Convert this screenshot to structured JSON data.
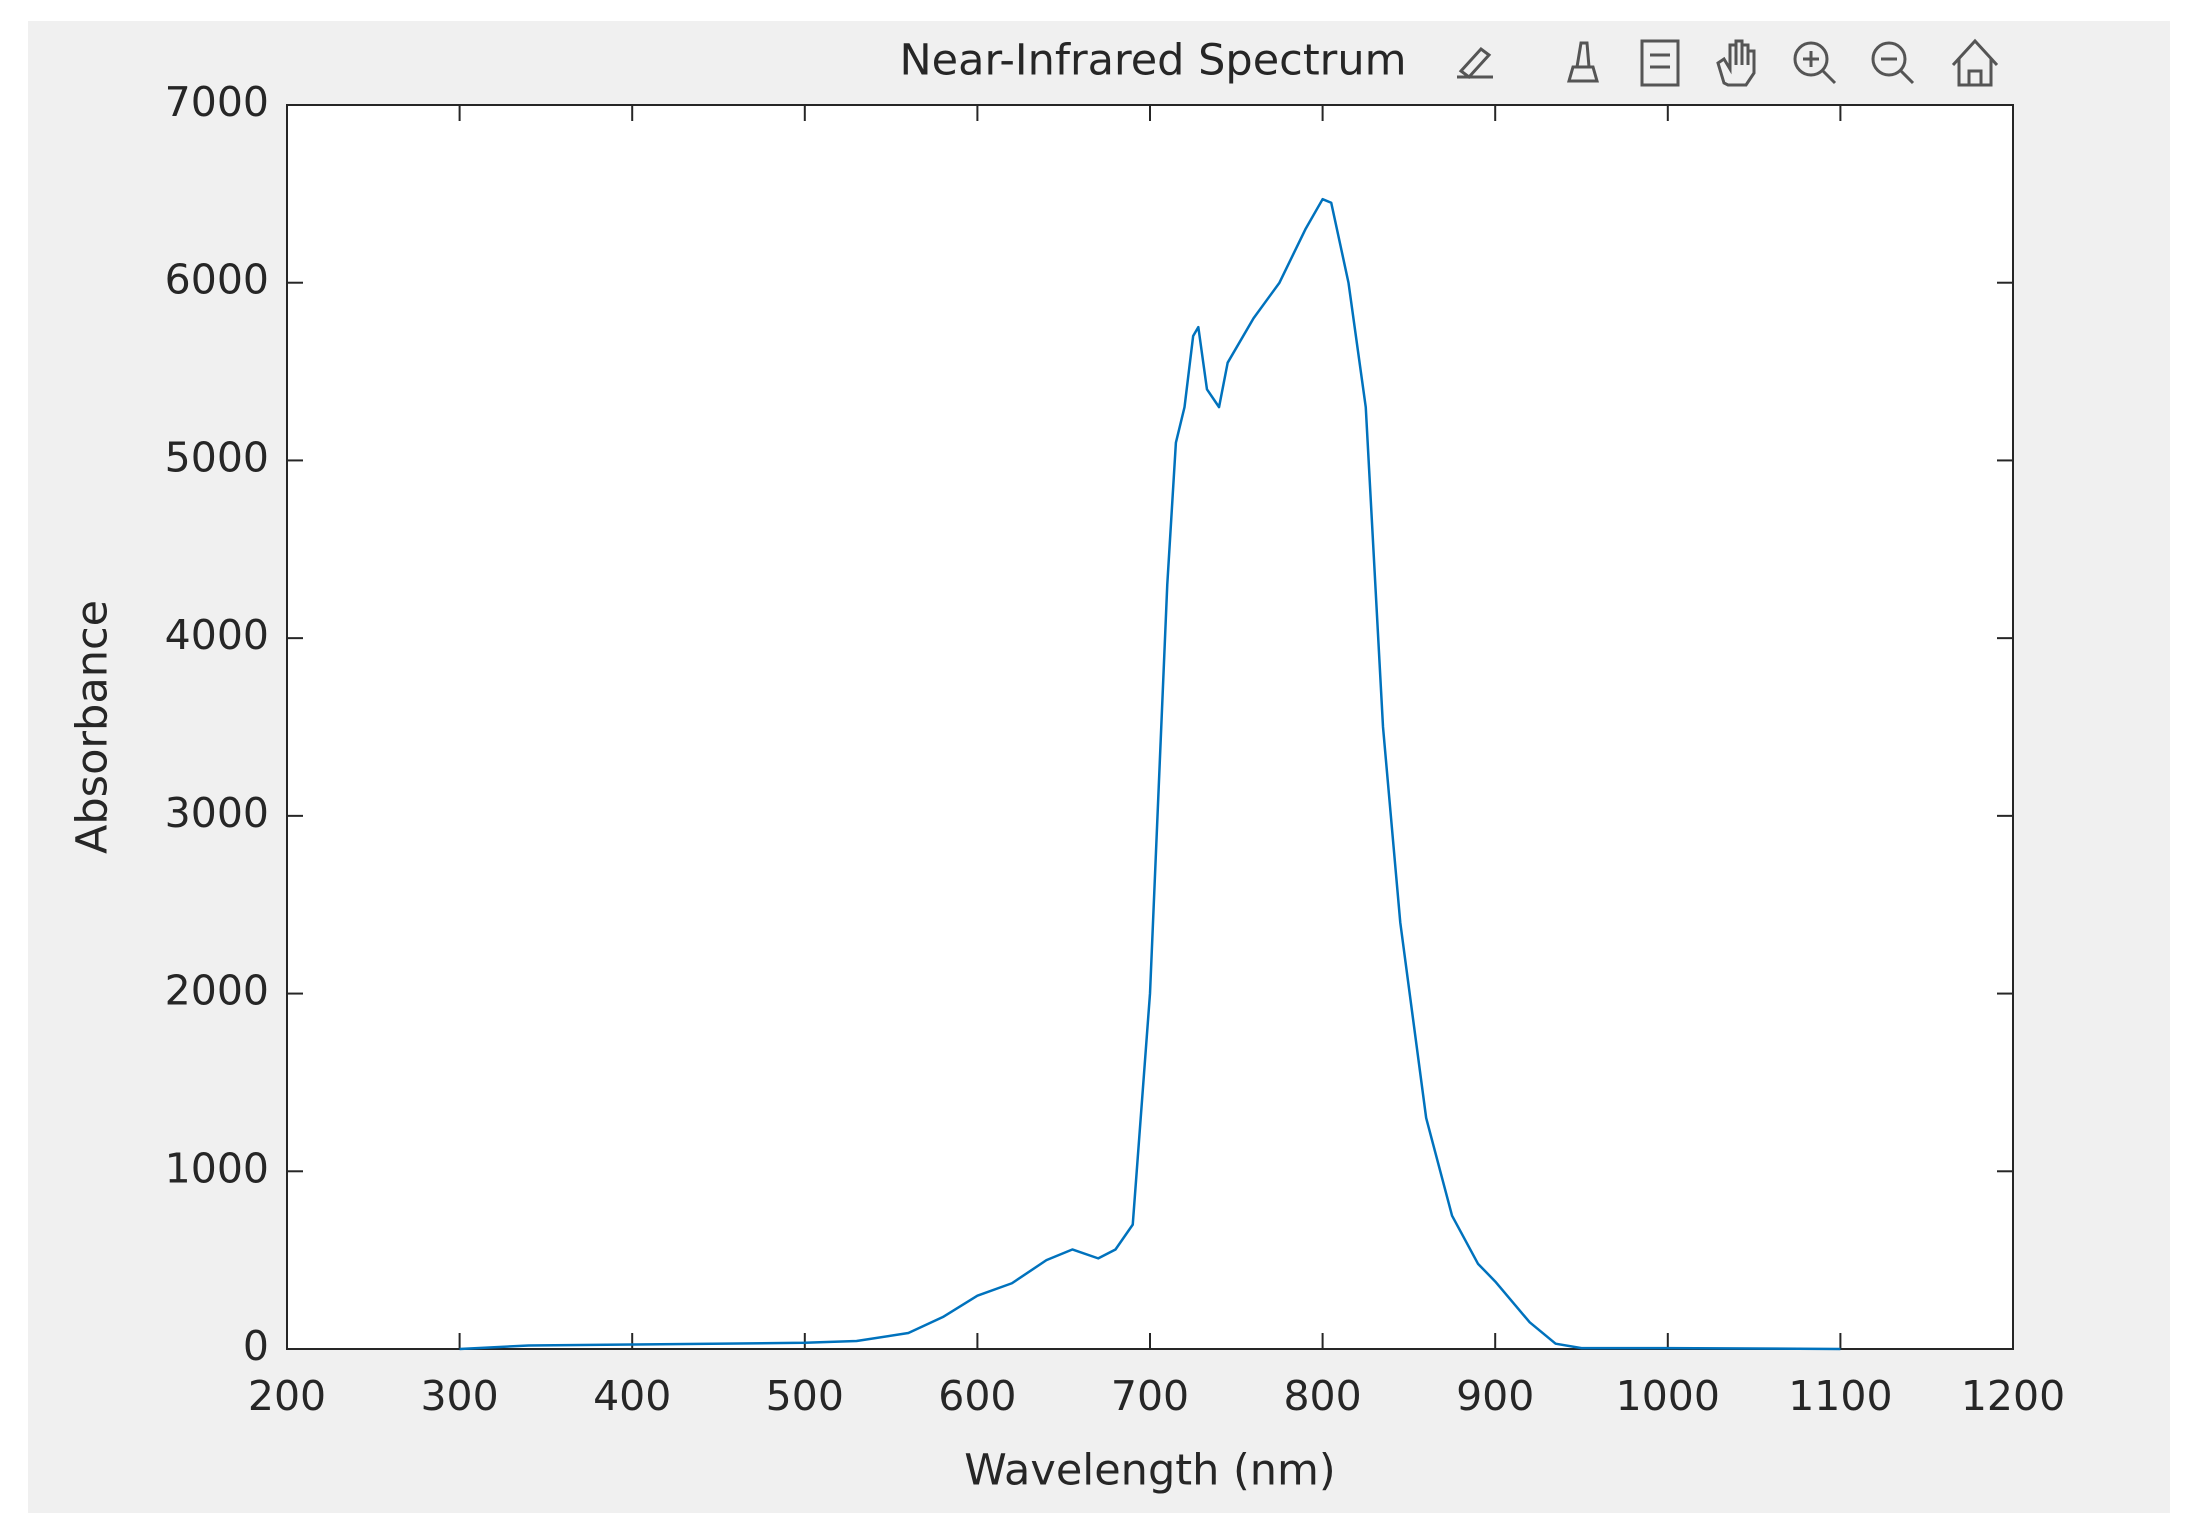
{
  "chart_data": {
    "type": "line",
    "title": "Near-Infrared Spectrum",
    "xlabel": "Wavelength (nm)",
    "ylabel": "Absorbance",
    "x": [
      300,
      340,
      400,
      500,
      530,
      560,
      580,
      600,
      620,
      640,
      655,
      670,
      680,
      690,
      700,
      710,
      715,
      720,
      725,
      728,
      733,
      740,
      745,
      760,
      775,
      790,
      800,
      805,
      815,
      825,
      835,
      845,
      860,
      875,
      890,
      900,
      920,
      935,
      950,
      1000,
      1100
    ],
    "series": [
      {
        "name": "Absorbance",
        "color": "#0072bd",
        "values": [
          0,
          20,
          25,
          35,
          45,
          90,
          180,
          300,
          370,
          500,
          560,
          510,
          560,
          700,
          2000,
          4300,
          5100,
          5300,
          5700,
          5750,
          5400,
          5300,
          5550,
          5800,
          6000,
          6300,
          6470,
          6450,
          6000,
          5300,
          3500,
          2400,
          1300,
          750,
          480,
          380,
          150,
          30,
          5,
          5,
          0
        ]
      }
    ],
    "xlim": [
      200,
      1200
    ],
    "xticks": [
      200,
      300,
      400,
      500,
      600,
      700,
      800,
      900,
      1000,
      1100,
      1200
    ],
    "ylim": [
      0,
      7000
    ],
    "yticks": [
      0,
      1000,
      2000,
      3000,
      4000,
      5000,
      6000,
      7000
    ],
    "grid": false
  }
}
